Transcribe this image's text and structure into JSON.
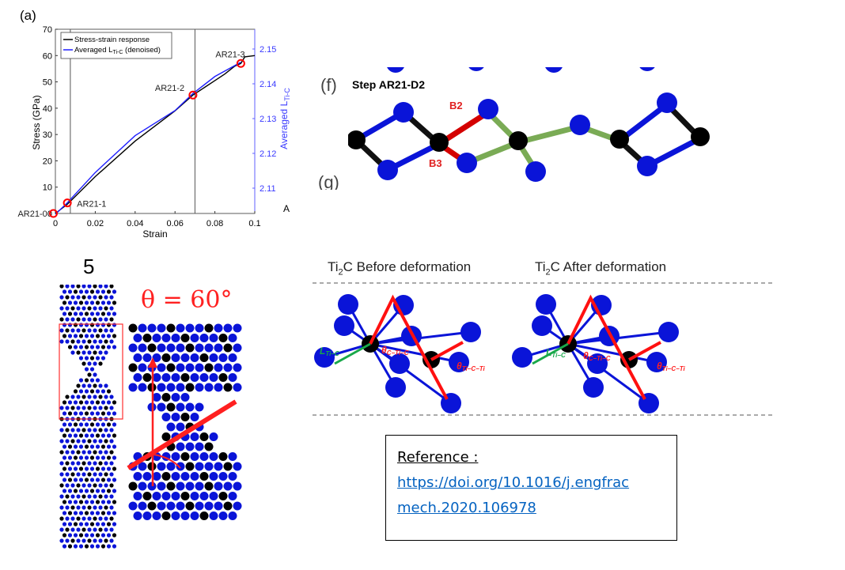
{
  "panel_a_label": "(a)",
  "chart_data": {
    "type": "line",
    "xlabel": "Strain",
    "ylabel": "Stress (GPa)",
    "y2label": "Averaged L",
    "y2label_sub": "Ti-C",
    "y2_unit_fragment": "A",
    "xlim": [
      0,
      0.1
    ],
    "ylim": [
      0,
      70
    ],
    "y2lim": [
      2.1025,
      2.1555
    ],
    "xticks": [
      "0",
      "0.02",
      "0.04",
      "0.06",
      "0.08",
      "0.1"
    ],
    "yticks": [
      "0",
      "10",
      "20",
      "30",
      "40",
      "50",
      "60",
      "70"
    ],
    "y2ticks": [
      "2.11",
      "2.12",
      "2.13",
      "2.14",
      "2.15"
    ],
    "legend_position": "top-left",
    "series": [
      {
        "name": "Stress-strain response",
        "axis": "left",
        "color": "#000000",
        "x": [
          0,
          0.006,
          0.02,
          0.04,
          0.06,
          0.069,
          0.075,
          0.08,
          0.085,
          0.09,
          0.093,
          0.095,
          0.1
        ],
        "y": [
          0,
          3.5,
          14,
          27.5,
          39,
          45,
          48,
          50.5,
          53,
          56,
          57,
          59.5,
          60
        ]
      },
      {
        "name": "Averaged L",
        "name_sub": "Ti-C",
        "name_suffix": " (denoised)",
        "axis": "right",
        "color": "#1f1fff",
        "x": [
          0,
          0.006,
          0.02,
          0.04,
          0.06,
          0.069,
          0.08,
          0.093
        ],
        "y": [
          2.1025,
          2.1058,
          2.1145,
          2.1251,
          2.1323,
          2.1372,
          2.1421,
          2.1462
        ]
      }
    ],
    "vertical_lines": [
      0.0075,
      0.07
    ],
    "markers": [
      {
        "label": "AR21-0",
        "x": -0.001,
        "y": 0
      },
      {
        "label": "AR21-1",
        "x": 0.006,
        "y": 4
      },
      {
        "label": "AR21-2",
        "x": 0.069,
        "y": 45
      },
      {
        "label": "AR21-3",
        "x": 0.093,
        "y": 57
      }
    ],
    "marker_color": "#ff0000"
  },
  "panel_f": {
    "label": "(f)",
    "title": "Step AR21-D2",
    "bond_b2": "B2",
    "bond_b3": "B3",
    "next_label": "(g)"
  },
  "panel_5": {
    "label": "5",
    "angle_label": "θ = 60°"
  },
  "ti2c": {
    "before_title": "Ti",
    "before_sub": "2",
    "before_rest": "C Before deformation",
    "after_title": "Ti",
    "after_sub": "2",
    "after_rest": "C After deformation",
    "length_label": "L",
    "length_sub": "Ti−C",
    "angle1": "θ",
    "angle1_sub": "C−Ti−C",
    "angle2": "θ",
    "angle2_sub": "Ti−C−Ti"
  },
  "reference": {
    "label": "Reference :",
    "link_line1": "https://doi.org/10.1016/j.engfrac",
    "link_line2": "mech.2020.106978"
  },
  "colors": {
    "ti_atom": "#0a14d8",
    "c_atom": "#000000",
    "highlight": "#ff0000",
    "green": "#19a84a"
  }
}
